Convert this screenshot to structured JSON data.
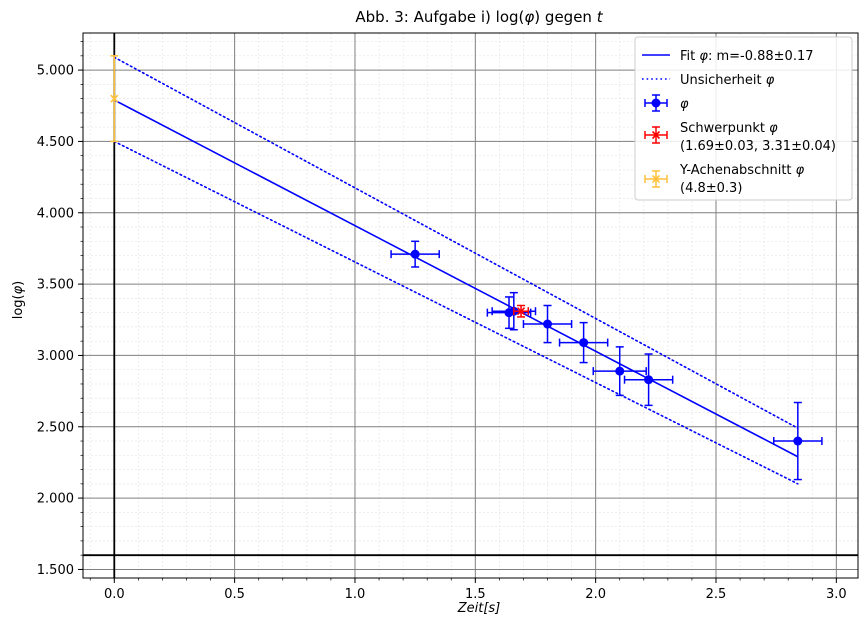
{
  "chart_data": {
    "type": "scatter",
    "title": "Abb. 3: Aufgabe i) log(φ) gegen t",
    "title_parts": {
      "prefix": "Abb. 3: Aufgabe i) log",
      "phi": "φ",
      "mid": " gegen ",
      "t": "t"
    },
    "xlabel": "Zeit[s]",
    "xlabel_parts": {
      "main": "Zeit",
      "unit": "[s]"
    },
    "ylabel": "log(φ)",
    "ylabel_parts": {
      "prefix": "log(",
      "phi": "φ",
      "suffix": ")"
    },
    "xlim": [
      -0.13,
      3.09
    ],
    "ylim": [
      1.44,
      5.26
    ],
    "x_ticks": [
      0.0,
      0.5,
      1.0,
      1.5,
      2.0,
      2.5,
      3.0
    ],
    "x_tick_labels": [
      "0.0",
      "0.5",
      "1.0",
      "1.5",
      "2.0",
      "2.5",
      "3.0"
    ],
    "y_ticks": [
      1.5,
      2.0,
      2.5,
      3.0,
      3.5,
      4.0,
      4.5,
      5.0
    ],
    "y_tick_labels": [
      "1.500",
      "2.000",
      "2.500",
      "3.000",
      "3.500",
      "4.000",
      "4.500",
      "5.000"
    ],
    "grid": true,
    "minor_grid": true,
    "reference_lines": {
      "vertical_x": 0.0,
      "horizontal_y": 1.6
    },
    "legend_placement": "top-right",
    "series": [
      {
        "name": "φ",
        "kind": "errorbar",
        "color": "#0000ff",
        "points": [
          {
            "x": 1.25,
            "y": 3.71,
            "xerr": 0.1,
            "yerr": 0.09
          },
          {
            "x": 1.64,
            "y": 3.3,
            "xerr": 0.09,
            "yerr": 0.11
          },
          {
            "x": 1.66,
            "y": 3.31,
            "xerr": 0.09,
            "yerr": 0.13
          },
          {
            "x": 1.8,
            "y": 3.22,
            "xerr": 0.1,
            "yerr": 0.13
          },
          {
            "x": 1.95,
            "y": 3.09,
            "xerr": 0.1,
            "yerr": 0.14
          },
          {
            "x": 2.1,
            "y": 2.89,
            "xerr": 0.11,
            "yerr": 0.17
          },
          {
            "x": 2.22,
            "y": 2.83,
            "xerr": 0.1,
            "yerr": 0.18
          },
          {
            "x": 2.84,
            "y": 2.4,
            "xerr": 0.1,
            "yerr": 0.27
          }
        ]
      },
      {
        "name": "Schwerpunkt φ",
        "label_line2": "(1.69±0.03, 3.31±0.04)",
        "kind": "errorbar-x",
        "color": "#ff0000",
        "points": [
          {
            "x": 1.69,
            "y": 3.31,
            "xerr": 0.03,
            "yerr": 0.04
          }
        ]
      },
      {
        "name": "Y-Achenabschnitt φ",
        "label_line2": "(4.8±0.3)",
        "kind": "errorbar-x",
        "color": "#ffc13a",
        "points": [
          {
            "x": 0.0,
            "y": 4.8,
            "xerr": 0.0,
            "yerr": 0.3
          }
        ]
      }
    ],
    "lines": [
      {
        "name": "Fit φ: m=-0.88±0.17",
        "label_prefix": "Fit ",
        "label_phi": "φ",
        "label_suffix": ": m=-0.88±0.17",
        "style": "solid",
        "color": "#0000ff",
        "x": [
          0.0,
          2.84
        ],
        "y": [
          4.79,
          2.29
        ]
      },
      {
        "name": "Unsicherheit φ",
        "label_prefix": "Unsicherheit ",
        "label_phi": "φ",
        "style": "dotted",
        "color": "#0000ff",
        "x": [
          0.0,
          2.84
        ],
        "y": [
          5.09,
          2.49
        ]
      },
      {
        "name": "Unsicherheit φ (unten)",
        "style": "dotted",
        "color": "#0000ff",
        "x": [
          0.0,
          2.84
        ],
        "y": [
          4.5,
          2.1
        ]
      }
    ]
  }
}
